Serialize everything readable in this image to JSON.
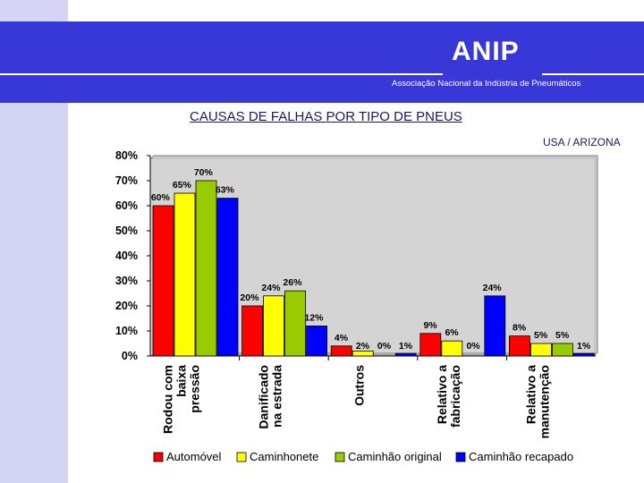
{
  "header": {
    "brand": "ANIP",
    "tagline": "Associação Nacional da Indústria de Pneumáticos"
  },
  "page": {
    "title": "CAUSAS DE FALHAS POR TIPO DE PNEUS",
    "region": "USA / ARIZONA"
  },
  "colors": {
    "banner": "#3838d8",
    "side_strip": "#d4d4f4",
    "plot_bg": "#c8c8c8"
  },
  "chart_data": {
    "type": "bar",
    "title": "",
    "xlabel": "",
    "ylabel": "",
    "categories": [
      "Rodou com baixa pressão",
      "Danificado na estrada",
      "Outros",
      "Relativo a fabricação",
      "Relativo a manutenção"
    ],
    "category_lines": [
      [
        "Rodou com",
        "baixa",
        "pressão"
      ],
      [
        "Danificado",
        "na estrada"
      ],
      [
        "Outros"
      ],
      [
        "Relativo a",
        "fabricação"
      ],
      [
        "Relativo a",
        "manutenção"
      ]
    ],
    "series": [
      {
        "name": "Automóvel",
        "color": "#ff0000",
        "values": [
          60,
          20,
          4,
          9,
          8
        ]
      },
      {
        "name": "Caminhonete",
        "color": "#ffff00",
        "values": [
          65,
          24,
          2,
          6,
          5
        ]
      },
      {
        "name": "Caminhão original",
        "color": "#99cc00",
        "values": [
          70,
          26,
          0,
          0,
          5
        ]
      },
      {
        "name": "Caminhão recapado",
        "color": "#0000ff",
        "values": [
          63,
          12,
          1,
          24,
          1
        ]
      }
    ],
    "ylim": [
      0,
      80
    ],
    "yticks": [
      0,
      10,
      20,
      30,
      40,
      50,
      60,
      70,
      80
    ],
    "ytick_labels": [
      "0%",
      "10%",
      "20%",
      "30%",
      "40%",
      "50%",
      "60%",
      "70%",
      "80%"
    ],
    "value_suffix": "%",
    "grid": false,
    "legend": "bottom"
  }
}
